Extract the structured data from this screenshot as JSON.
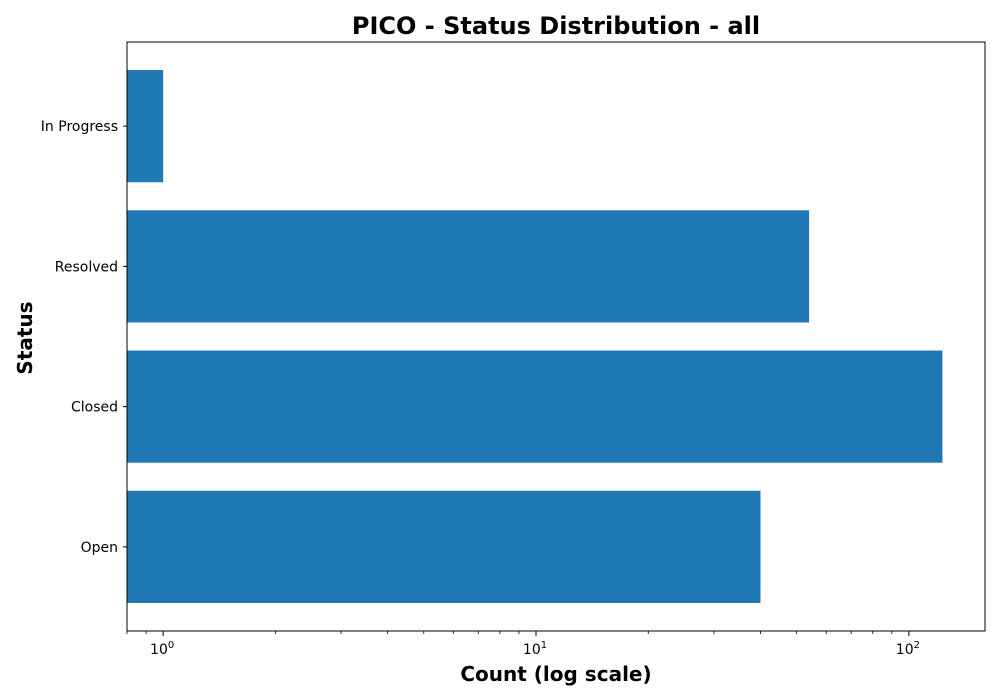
{
  "chart_data": {
    "type": "bar",
    "orientation": "horizontal",
    "title": "PICO - Status Distribution - all",
    "xlabel": "Count (log scale)",
    "ylabel": "Status",
    "x_scale": "log",
    "xlim": [
      0.8,
      160
    ],
    "categories": [
      "Open",
      "Closed",
      "Resolved",
      "In Progress"
    ],
    "values": [
      40,
      123,
      54,
      1
    ],
    "x_ticks": [
      {
        "value": 1,
        "base": "10",
        "exp": "0"
      },
      {
        "value": 10,
        "base": "10",
        "exp": "1"
      },
      {
        "value": 100,
        "base": "10",
        "exp": "2"
      }
    ],
    "bar_color": "#1f77b4",
    "grid": false
  }
}
